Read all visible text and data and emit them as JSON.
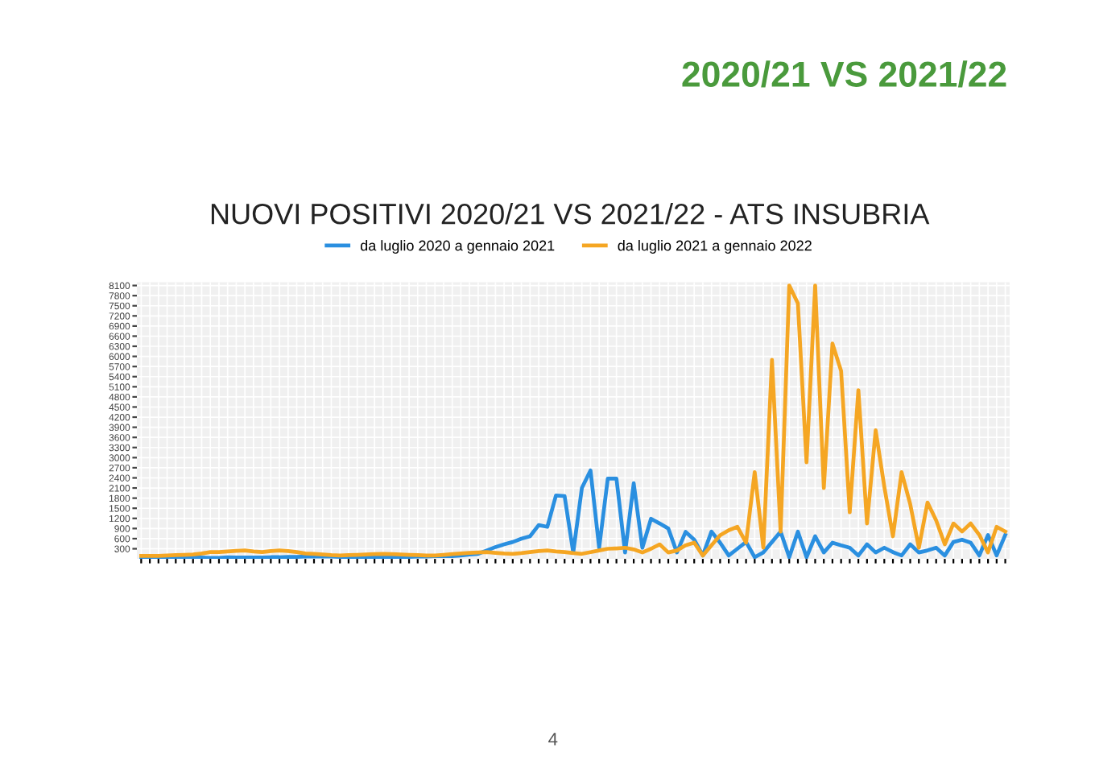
{
  "chart_data": {
    "type": "line",
    "title": "NUOVI POSITIVI 2020/21 VS 2021/22 - ATS INSUBRIA",
    "annotations": [
      "2020/21 VS 2021/22",
      "4"
    ],
    "categories": [
      null,
      null,
      null,
      null,
      null,
      null,
      null,
      null,
      null,
      null,
      null,
      null,
      null,
      null,
      null,
      null,
      null,
      null,
      null,
      null,
      null,
      null,
      null,
      null,
      null,
      null,
      null,
      null,
      null,
      null,
      null,
      null,
      null,
      null,
      null,
      null,
      null,
      null,
      null,
      null,
      null,
      null,
      null,
      null,
      null,
      null,
      null,
      null,
      null,
      null,
      null,
      null,
      null,
      null,
      null,
      null,
      null,
      null,
      null,
      null,
      null,
      null,
      null,
      null,
      null,
      null,
      null,
      null,
      null,
      null,
      null,
      null,
      null,
      null,
      null,
      null,
      null,
      null,
      null,
      null,
      null,
      null,
      null,
      null,
      null,
      null,
      null,
      null,
      null,
      null,
      null,
      null,
      null,
      null,
      null,
      null,
      null,
      null,
      null,
      null,
      null
    ],
    "ylim": [
      0,
      8200
    ],
    "yticks": [
      300,
      600,
      900,
      1200,
      1500,
      1800,
      2100,
      2400,
      2700,
      3000,
      3300,
      3600,
      3900,
      4200,
      4500,
      4800,
      5100,
      5400,
      5700,
      6000,
      6300,
      6600,
      6900,
      7200,
      7500,
      7800,
      8100
    ],
    "tick_labels": "y",
    "grid": true,
    "legend": "top",
    "series": [
      {
        "name": "da luglio 2020 a gennaio 2021",
        "color": "#2a8fe0",
        "values": [
          20,
          20,
          30,
          40,
          40,
          40,
          40,
          40,
          30,
          30,
          50,
          40,
          40,
          40,
          40,
          50,
          50,
          60,
          60,
          70,
          70,
          70,
          70,
          60,
          60,
          50,
          50,
          50,
          50,
          50,
          60,
          60,
          70,
          70,
          80,
          80,
          80,
          100,
          130,
          150,
          250,
          350,
          430,
          500,
          600,
          670,
          1000,
          950,
          1880,
          1860,
          190,
          2100,
          2620,
          330,
          2380,
          2380,
          190,
          2240,
          330,
          1190,
          1050,
          900,
          190,
          800,
          570,
          100,
          810,
          480,
          100,
          300,
          500,
          50,
          190,
          500,
          810,
          50,
          810,
          50,
          670,
          190,
          480,
          400,
          330,
          100,
          430,
          190,
          330,
          200,
          100,
          430,
          190,
          250,
          330,
          100,
          500,
          570,
          480,
          100,
          710,
          100,
          710
        ]
      },
      {
        "name": "da luglio 2021 a gennaio 2022",
        "color": "#f5a623",
        "values": [
          90,
          90,
          90,
          100,
          110,
          120,
          130,
          160,
          200,
          200,
          220,
          240,
          250,
          220,
          200,
          230,
          250,
          230,
          200,
          160,
          150,
          130,
          110,
          100,
          110,
          120,
          130,
          140,
          150,
          140,
          130,
          120,
          110,
          100,
          100,
          120,
          140,
          160,
          180,
          190,
          200,
          180,
          160,
          150,
          170,
          200,
          230,
          250,
          220,
          200,
          170,
          150,
          200,
          250,
          300,
          310,
          330,
          280,
          190,
          300,
          430,
          190,
          250,
          400,
          480,
          100,
          400,
          700,
          850,
          950,
          480,
          2570,
          330,
          5900,
          810,
          8100,
          7570,
          2860,
          8100,
          2100,
          6380,
          5570,
          1380,
          5000,
          1050,
          3810,
          2140,
          670,
          2570,
          1620,
          330,
          1670,
          1140,
          430,
          1050,
          810,
          1050,
          710,
          190,
          950,
          810
        ]
      }
    ]
  }
}
